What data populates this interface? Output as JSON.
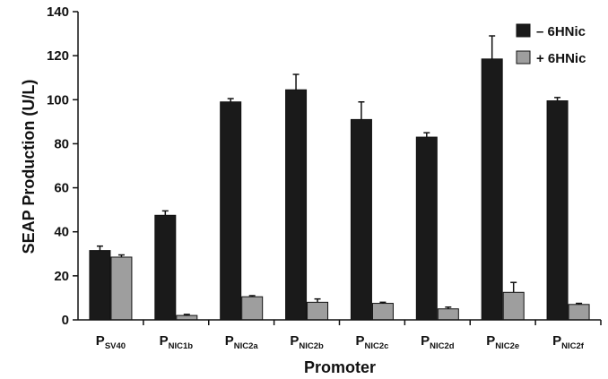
{
  "chart_data": {
    "type": "bar",
    "ylabel": "SEAP Production (U/L)",
    "xlabel": "Promoter",
    "ylim": [
      0,
      140
    ],
    "yticks": [
      0,
      20,
      40,
      60,
      80,
      100,
      120,
      140
    ],
    "grid": false,
    "legend_position": "top-right",
    "categories": [
      {
        "main": "P",
        "sub": "SV40"
      },
      {
        "main": "P",
        "sub": "NIC1b"
      },
      {
        "main": "P",
        "sub": "NIC2a"
      },
      {
        "main": "P",
        "sub": "NIC2b"
      },
      {
        "main": "P",
        "sub": "NIC2c"
      },
      {
        "main": "P",
        "sub": "NIC2d"
      },
      {
        "main": "P",
        "sub": "NIC2e"
      },
      {
        "main": "P",
        "sub": "NIC2f"
      }
    ],
    "series": [
      {
        "name": "– 6HNic",
        "color": "#1a1a1a",
        "values": [
          31.5,
          47.5,
          99,
          104.5,
          91,
          83,
          118.5,
          99.5
        ],
        "errors": [
          2,
          2,
          1.5,
          7,
          8,
          2,
          10.5,
          1.5
        ]
      },
      {
        "name": "+ 6HNic",
        "color": "#9e9e9e",
        "values": [
          28.5,
          2,
          10.5,
          8,
          7.5,
          5,
          12.5,
          7
        ],
        "errors": [
          1,
          0.5,
          0.5,
          1.5,
          0.5,
          0.8,
          4.5,
          0.5
        ]
      }
    ]
  }
}
